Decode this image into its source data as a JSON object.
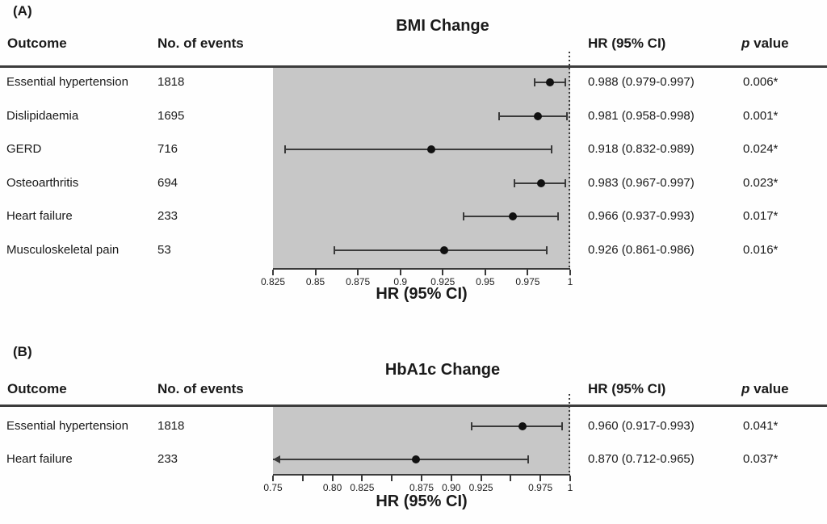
{
  "colors": {
    "shaded_region": "#c7c7c7",
    "lines": "#3a3a3a",
    "marker": "#111111",
    "text": "#1a1a1a",
    "background": "#fefefe"
  },
  "chart_data": [
    {
      "type": "scatter",
      "subtype": "forest-plot",
      "panel_label": "(A)",
      "title": "BMI Change",
      "columns": {
        "outcome": "Outcome",
        "events": "No. of events",
        "hr": "HR (95% CI)",
        "p_italic": "p",
        "p_rest": " value"
      },
      "xlabel": "HR (95% CI)",
      "xlim": [
        0.825,
        1.0
      ],
      "xticks": [
        0.825,
        0.85,
        0.875,
        0.9,
        0.925,
        0.95,
        0.975,
        1
      ],
      "xtick_labels": [
        "0.825",
        "0.85",
        "0.875",
        "0.9",
        "0.925",
        "0.95",
        "0.975",
        "1"
      ],
      "reference_line": 1.0,
      "shaded_region": [
        0.825,
        1.0
      ],
      "legend": "none",
      "rows": [
        {
          "outcome": "Essential hypertension",
          "events": "1818",
          "hr": 0.988,
          "ci_low": 0.979,
          "ci_high": 0.997,
          "hr_ci_text": "0.988 (0.979-0.997)",
          "p_value": "0.006*"
        },
        {
          "outcome": "Dislipidaemia",
          "events": "1695",
          "hr": 0.981,
          "ci_low": 0.958,
          "ci_high": 0.998,
          "hr_ci_text": "0.981 (0.958-0.998)",
          "p_value": "0.001*"
        },
        {
          "outcome": "GERD",
          "events": "716",
          "hr": 0.918,
          "ci_low": 0.832,
          "ci_high": 0.989,
          "hr_ci_text": "0.918 (0.832-0.989)",
          "p_value": "0.024*"
        },
        {
          "outcome": "Osteoarthritis",
          "events": "694",
          "hr": 0.983,
          "ci_low": 0.967,
          "ci_high": 0.997,
          "hr_ci_text": "0.983 (0.967-0.997)",
          "p_value": "0.023*"
        },
        {
          "outcome": "Heart failure",
          "events": "233",
          "hr": 0.966,
          "ci_low": 0.937,
          "ci_high": 0.993,
          "hr_ci_text": "0.966 (0.937-0.993)",
          "p_value": "0.017*"
        },
        {
          "outcome": "Musculoskeletal pain",
          "events": "53",
          "hr": 0.926,
          "ci_low": 0.861,
          "ci_high": 0.986,
          "hr_ci_text": "0.926 (0.861-0.986)",
          "p_value": "0.016*"
        }
      ]
    },
    {
      "type": "scatter",
      "subtype": "forest-plot",
      "panel_label": "(B)",
      "title": "HbA1c Change",
      "columns": {
        "outcome": "Outcome",
        "events": "No. of events",
        "hr": "HR (95% CI)",
        "p_italic": "p",
        "p_rest": " value"
      },
      "xlabel": "HR (95% CI)",
      "xlim": [
        0.75,
        1.0
      ],
      "xticks": [
        0.75,
        0.775,
        0.8,
        0.825,
        0.85,
        0.875,
        0.9,
        0.925,
        0.95,
        0.975,
        1
      ],
      "xtick_labels": [
        "0.75",
        "",
        "0.80",
        "0.825",
        "",
        "0.875",
        "0.90",
        "0.925",
        "",
        "0.975",
        "1"
      ],
      "reference_line": 1.0,
      "shaded_region": [
        0.75,
        1.0
      ],
      "legend": "none",
      "rows": [
        {
          "outcome": "Essential hypertension",
          "events": "1818",
          "hr": 0.96,
          "ci_low": 0.917,
          "ci_high": 0.993,
          "hr_ci_text": "0.960 (0.917-0.993)",
          "p_value": "0.041*"
        },
        {
          "outcome": "Heart failure",
          "events": "233",
          "hr": 0.87,
          "ci_low": 0.712,
          "ci_high": 0.965,
          "hr_ci_text": "0.870 (0.712-0.965)",
          "p_value": "0.037*"
        }
      ]
    }
  ]
}
